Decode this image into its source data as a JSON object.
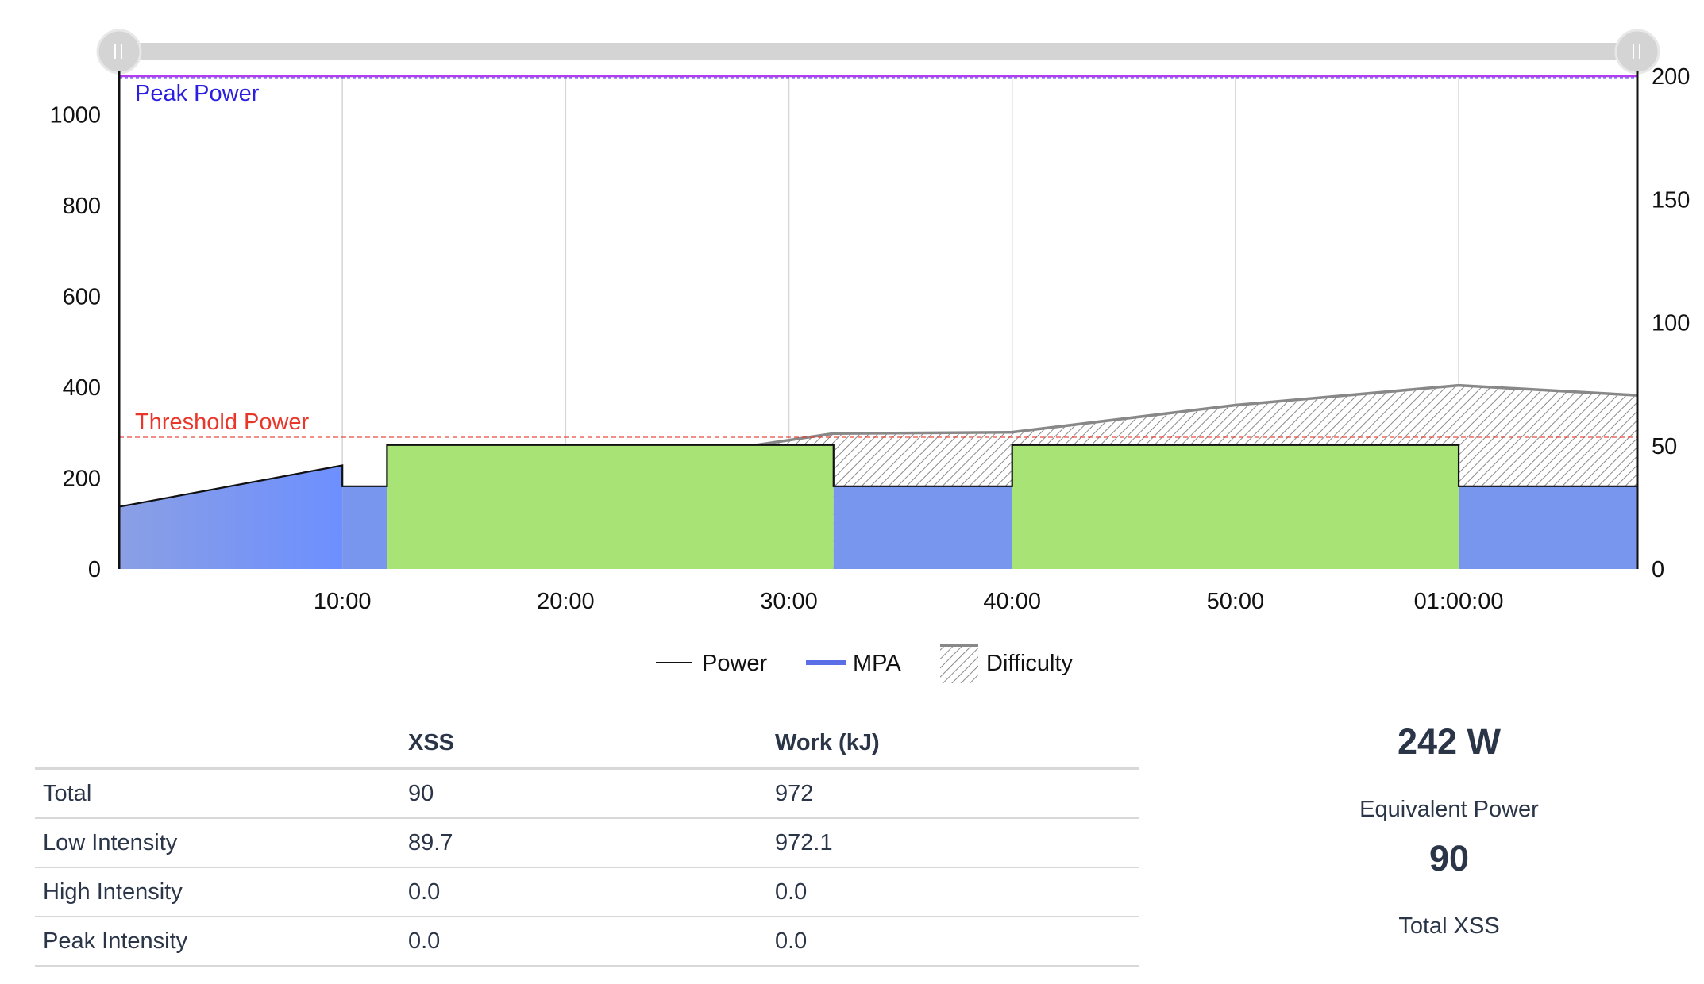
{
  "chart_data": {
    "type": "area",
    "x_unit": "seconds",
    "y_left_ticks": [
      0,
      200,
      400,
      600,
      800,
      1000
    ],
    "y_right_ticks": [
      0,
      50,
      100,
      150,
      200
    ],
    "y_left_range": [
      0,
      1085
    ],
    "y_right_range": [
      0,
      200
    ],
    "x_range": [
      0,
      4080
    ],
    "x_ticks": [
      {
        "value": 600,
        "label": "10:00"
      },
      {
        "value": 1200,
        "label": "20:00"
      },
      {
        "value": 1800,
        "label": "30:00"
      },
      {
        "value": 2400,
        "label": "40:00"
      },
      {
        "value": 3000,
        "label": "50:00"
      },
      {
        "value": 3600,
        "label": "01:00:00"
      }
    ],
    "grid": "vertical",
    "peak_power": {
      "label": "Peak Power",
      "value": 1085,
      "color": "#b13cf0",
      "label_color": "#2a1ee0"
    },
    "threshold_power": {
      "label": "Threshold Power",
      "value": 290,
      "color": "#e8372a"
    },
    "power_intervals": [
      {
        "start": 0,
        "end": 600,
        "power_start": 137,
        "power_end": 228,
        "zone": "low"
      },
      {
        "start": 600,
        "end": 720,
        "power_start": 182,
        "power_end": 182,
        "zone": "low"
      },
      {
        "start": 720,
        "end": 1920,
        "power_start": 273,
        "power_end": 273,
        "zone": "mid"
      },
      {
        "start": 1920,
        "end": 2400,
        "power_start": 182,
        "power_end": 182,
        "zone": "low"
      },
      {
        "start": 2400,
        "end": 3600,
        "power_start": 273,
        "power_end": 273,
        "zone": "mid"
      },
      {
        "start": 3600,
        "end": 4080,
        "power_start": 182,
        "power_end": 182,
        "zone": "low"
      }
    ],
    "difficulty": {
      "x": [
        1700,
        1920,
        2400,
        3000,
        3600,
        4080
      ],
      "y": [
        50,
        55,
        55.5,
        66.5,
        74.5,
        70.5
      ]
    },
    "colors": {
      "low": "#7896ee",
      "mid": "#a8e375",
      "ramp_start": "#8a9fe4",
      "ramp_end": "#6d8fff",
      "difficulty": "#888888"
    },
    "legend": [
      {
        "label": "Power",
        "kind": "line",
        "color": "#111111"
      },
      {
        "label": "MPA",
        "kind": "thick-line",
        "color": "#5a6fe6"
      },
      {
        "label": "Difficulty",
        "kind": "hatch",
        "color": "#888888"
      }
    ],
    "legend_position": "bottom"
  },
  "table": {
    "headers": [
      "",
      "XSS",
      "Work (kJ)"
    ],
    "rows": [
      [
        "Total",
        "90",
        "972"
      ],
      [
        "Low Intensity",
        "89.7",
        "972.1"
      ],
      [
        "High Intensity",
        "0.0",
        "0.0"
      ],
      [
        "Peak Intensity",
        "0.0",
        "0.0"
      ]
    ]
  },
  "summary": {
    "equivalent_power_value": "242 W",
    "equivalent_power_label": "Equivalent Power",
    "total_xss_value": "90",
    "total_xss_label": "Total XSS"
  }
}
